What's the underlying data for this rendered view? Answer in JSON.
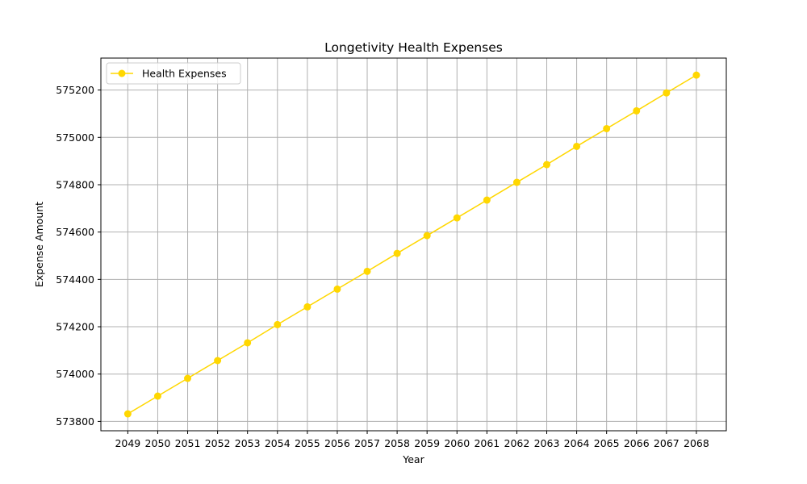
{
  "chart_data": {
    "type": "line",
    "title": "Longetivity Health Expenses",
    "xlabel": "Year",
    "ylabel": "Expense Amount",
    "x": [
      2049,
      2050,
      2051,
      2052,
      2053,
      2054,
      2055,
      2056,
      2057,
      2058,
      2059,
      2060,
      2061,
      2062,
      2063,
      2064,
      2065,
      2066,
      2067,
      2068
    ],
    "series": [
      {
        "name": "Health Expenses",
        "color": "#FFD700",
        "marker": "circle",
        "values": [
          573832,
          573907,
          573982,
          574057,
          574132,
          574209,
          574284,
          574359,
          574434,
          574510,
          574585,
          574660,
          574735,
          574810,
          574885,
          574962,
          575037,
          575112,
          575188,
          575263
        ]
      }
    ],
    "xticks": [
      2049,
      2050,
      2051,
      2052,
      2053,
      2054,
      2055,
      2056,
      2057,
      2058,
      2059,
      2060,
      2061,
      2062,
      2063,
      2064,
      2065,
      2066,
      2067,
      2068
    ],
    "xlim": [
      2048.1,
      2069.0
    ],
    "yticks": [
      573800,
      574000,
      574200,
      574400,
      574600,
      574800,
      575000,
      575200
    ],
    "ylim": [
      573760.5,
      575335
    ],
    "grid": true,
    "grid_color": "#b0b0b0",
    "legend_position": "upper left"
  }
}
